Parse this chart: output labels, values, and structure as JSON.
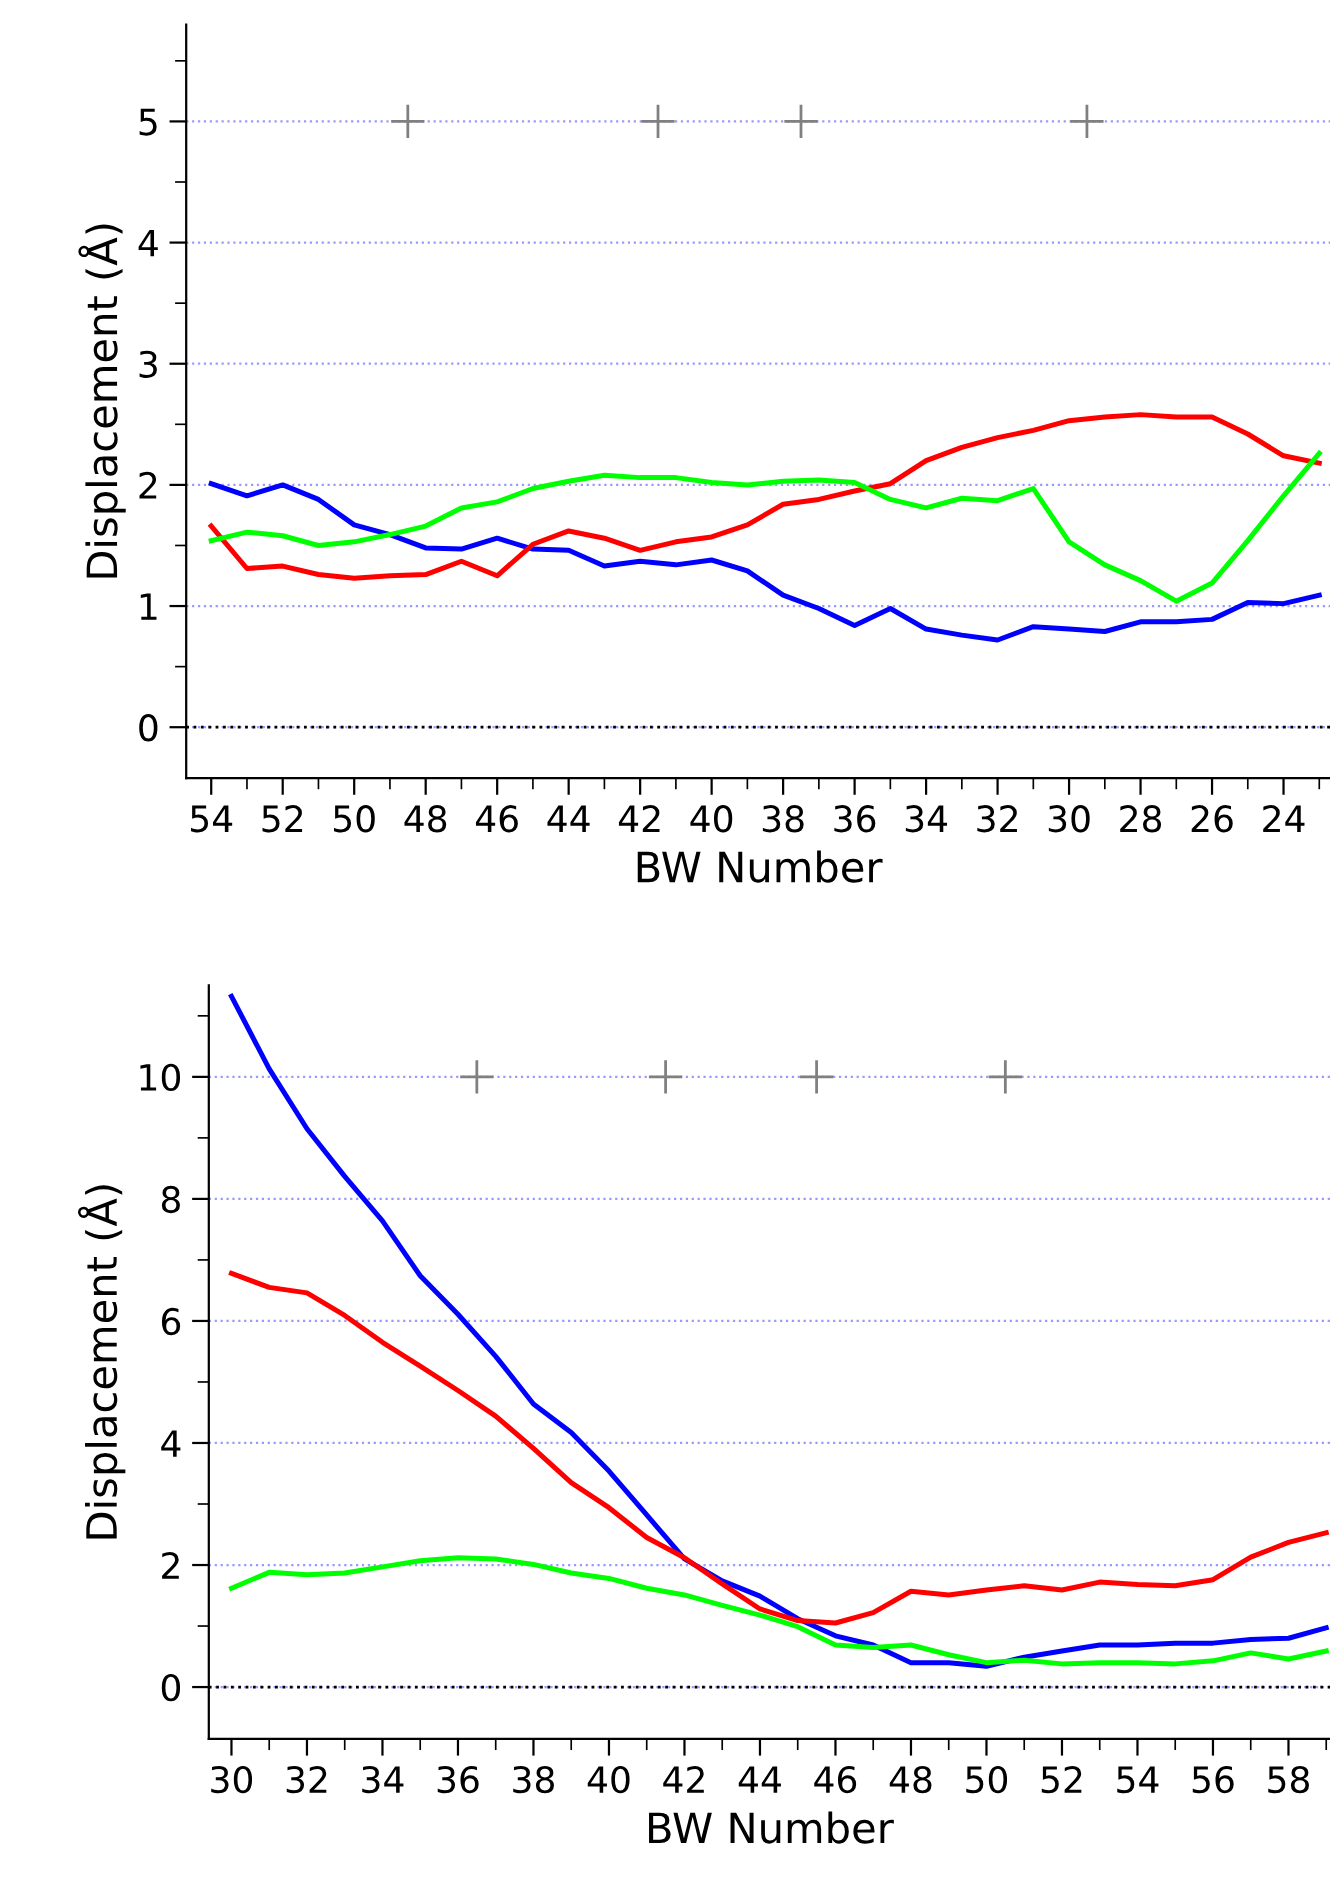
{
  "chart_data": [
    {
      "type": "line",
      "xlabel": "BW Number",
      "ylabel": "Displacement (Å)",
      "xlim": [
        54.7,
        22.7
      ],
      "ylim": [
        -0.42,
        5.8
      ],
      "xticks": [
        54,
        52,
        50,
        48,
        46,
        44,
        42,
        40,
        38,
        36,
        34,
        32,
        30,
        28,
        26,
        24
      ],
      "yticks": [
        0,
        1,
        2,
        3,
        4,
        5
      ],
      "grid": "y",
      "ref_lines": [
        {
          "axis": "y",
          "value": 0,
          "line_style": "dotted",
          "color": "#000000"
        }
      ],
      "series": [
        {
          "color": "#0000ff",
          "x": [
            54,
            53,
            52,
            51,
            50,
            49,
            48,
            47,
            46,
            45,
            44,
            43,
            42,
            41,
            40,
            39,
            38,
            37,
            36,
            35,
            34,
            33,
            32,
            31,
            30,
            29,
            28,
            27,
            26,
            25,
            24,
            23
          ],
          "values": [
            2.01,
            1.91,
            2.0,
            1.88,
            1.67,
            1.59,
            1.48,
            1.47,
            1.56,
            1.47,
            1.46,
            1.33,
            1.37,
            1.34,
            1.38,
            1.29,
            1.09,
            0.98,
            0.84,
            0.98,
            0.81,
            0.76,
            0.72,
            0.83,
            0.81,
            0.79,
            0.87,
            0.87,
            0.89,
            1.03,
            1.02,
            1.09
          ]
        },
        {
          "color": "#ff0000",
          "x": [
            54,
            53,
            52,
            51,
            50,
            49,
            48,
            47,
            46,
            45,
            44,
            43,
            42,
            41,
            40,
            39,
            38,
            37,
            36,
            35,
            34,
            33,
            32,
            31,
            30,
            29,
            28,
            27,
            26,
            25,
            24,
            23
          ],
          "values": [
            1.66,
            1.31,
            1.33,
            1.26,
            1.23,
            1.25,
            1.26,
            1.37,
            1.25,
            1.51,
            1.62,
            1.56,
            1.46,
            1.53,
            1.57,
            1.67,
            1.84,
            1.88,
            1.95,
            2.01,
            2.2,
            2.31,
            2.39,
            2.45,
            2.53,
            2.56,
            2.58,
            2.56,
            2.56,
            2.42,
            2.24,
            2.18
          ]
        },
        {
          "color": "#00ff00",
          "x": [
            54,
            53,
            52,
            51,
            50,
            49,
            48,
            47,
            46,
            45,
            44,
            43,
            42,
            41,
            40,
            39,
            38,
            37,
            36,
            35,
            34,
            33,
            32,
            31,
            30,
            29,
            28,
            27,
            26,
            25,
            24,
            23
          ],
          "values": [
            1.54,
            1.61,
            1.58,
            1.5,
            1.53,
            1.59,
            1.66,
            1.81,
            1.86,
            1.97,
            2.03,
            2.08,
            2.06,
            2.06,
            2.02,
            2.0,
            2.03,
            2.04,
            2.02,
            1.88,
            1.81,
            1.89,
            1.87,
            1.97,
            1.53,
            1.34,
            1.21,
            1.04,
            1.19,
            1.54,
            1.91,
            2.26
          ]
        },
        {
          "type": "scatter",
          "marker": "cross",
          "color": "#808080",
          "x": [
            48.5,
            41.5,
            37.5,
            29.5
          ],
          "values": [
            5,
            5,
            5,
            5
          ]
        }
      ]
    },
    {
      "type": "line",
      "xlabel": "BW Number",
      "ylabel": "Displacement (Å)",
      "xlim": [
        29.4,
        59.1
      ],
      "ylim": [
        -0.85,
        11.5
      ],
      "xticks": [
        30,
        32,
        34,
        36,
        38,
        40,
        42,
        44,
        46,
        48,
        50,
        52,
        54,
        56,
        58
      ],
      "yticks": [
        0,
        2,
        4,
        6,
        8,
        10
      ],
      "grid": "y",
      "ref_lines": [
        {
          "axis": "y",
          "value": 0,
          "line_style": "dotted",
          "color": "#000000"
        }
      ],
      "series": [
        {
          "color": "#0000ff",
          "x": [
            30,
            31,
            32,
            33,
            34,
            35,
            36,
            37,
            38,
            39,
            40,
            41,
            42,
            43,
            44,
            45,
            46,
            47,
            48,
            49,
            50,
            51,
            52,
            53,
            54,
            55,
            56,
            57,
            58,
            59
          ],
          "values": [
            11.32,
            10.13,
            9.15,
            8.37,
            7.64,
            6.74,
            6.11,
            5.42,
            4.64,
            4.17,
            3.54,
            2.82,
            2.1,
            1.74,
            1.49,
            1.12,
            0.84,
            0.69,
            0.4,
            0.4,
            0.34,
            0.49,
            0.59,
            0.69,
            0.69,
            0.72,
            0.72,
            0.78,
            0.8,
            0.97
          ]
        },
        {
          "color": "#ff0000",
          "x": [
            30,
            31,
            32,
            33,
            34,
            35,
            36,
            37,
            38,
            39,
            40,
            41,
            42,
            43,
            44,
            45,
            46,
            47,
            48,
            49,
            50,
            51,
            52,
            53,
            54,
            55,
            56,
            57,
            58,
            59
          ],
          "values": [
            6.78,
            6.55,
            6.46,
            6.09,
            5.65,
            5.26,
            4.86,
            4.44,
            3.91,
            3.35,
            2.94,
            2.45,
            2.12,
            1.69,
            1.28,
            1.09,
            1.05,
            1.22,
            1.57,
            1.51,
            1.59,
            1.66,
            1.59,
            1.72,
            1.68,
            1.66,
            1.76,
            2.13,
            2.37,
            2.53
          ]
        },
        {
          "color": "#00ff00",
          "x": [
            30,
            31,
            32,
            33,
            34,
            35,
            36,
            37,
            38,
            39,
            40,
            41,
            42,
            43,
            44,
            45,
            46,
            47,
            48,
            49,
            50,
            51,
            52,
            53,
            54,
            55,
            56,
            57,
            58,
            59
          ],
          "values": [
            1.62,
            1.88,
            1.84,
            1.87,
            1.97,
            2.07,
            2.12,
            2.1,
            2.01,
            1.87,
            1.78,
            1.62,
            1.51,
            1.34,
            1.18,
            0.99,
            0.69,
            0.65,
            0.69,
            0.53,
            0.4,
            0.44,
            0.38,
            0.4,
            0.4,
            0.38,
            0.43,
            0.56,
            0.46,
            0.59
          ]
        },
        {
          "type": "scatter",
          "marker": "cross",
          "color": "#808080",
          "x": [
            36.5,
            41.5,
            45.5,
            50.5
          ],
          "values": [
            10,
            10,
            10,
            10
          ]
        }
      ]
    }
  ]
}
